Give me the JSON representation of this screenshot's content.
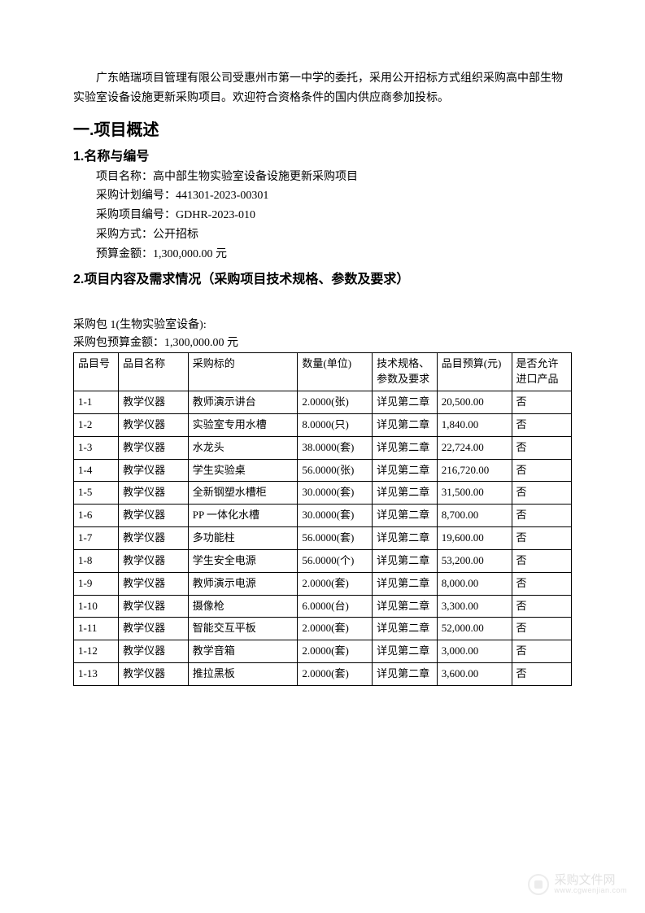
{
  "intro": "广东皓瑞项目管理有限公司受惠州市第一中学的委托，采用公开招标方式组织采购高中部生物实验室设备设施更新采购项目。欢迎符合资格条件的国内供应商参加投标。",
  "section1_title": "一.项目概述",
  "sub1_title": "1.名称与编号",
  "fields": {
    "project_name_label": "项目名称：",
    "project_name": "高中部生物实验室设备设施更新采购项目",
    "plan_no_label": "采购计划编号：",
    "plan_no": "441301-2023-00301",
    "proj_no_label": "采购项目编号：",
    "proj_no": "GDHR-2023-010",
    "method_label": "采购方式：",
    "method": "公开招标",
    "budget_label": "预算金额：",
    "budget": "1,300,000.00 元"
  },
  "sub2_title": "2.项目内容及需求情况（采购项目技术规格、参数及要求）",
  "package_title": "采购包 1(生物实验室设备):",
  "package_budget_label": "采购包预算金额：",
  "package_budget": "1,300,000.00 元",
  "table": {
    "columns": [
      "品目号",
      "品目名称",
      "采购标的",
      "数量(单位)",
      "技术规格、参数及要求",
      "品目预算(元)",
      "是否允许进口产品"
    ],
    "widths": [
      "9%",
      "14%",
      "22%",
      "15%",
      "13%",
      "15%",
      "12%"
    ],
    "border_color": "#000000",
    "font_size": 13,
    "rows": [
      [
        "1-1",
        "教学仪器",
        "教师演示讲台",
        "2.0000(张)",
        "详见第二章",
        "20,500.00",
        "否"
      ],
      [
        "1-2",
        "教学仪器",
        "实验室专用水槽",
        "8.0000(只)",
        "详见第二章",
        "1,840.00",
        "否"
      ],
      [
        "1-3",
        "教学仪器",
        "水龙头",
        "38.0000(套)",
        "详见第二章",
        "22,724.00",
        "否"
      ],
      [
        "1-4",
        "教学仪器",
        "学生实验桌",
        "56.0000(张)",
        "详见第二章",
        "216,720.00",
        "否"
      ],
      [
        "1-5",
        "教学仪器",
        "全新钢塑水槽柜",
        "30.0000(套)",
        "详见第二章",
        "31,500.00",
        "否"
      ],
      [
        "1-6",
        "教学仪器",
        "PP 一体化水槽",
        "30.0000(套)",
        "详见第二章",
        "8,700.00",
        "否"
      ],
      [
        "1-7",
        "教学仪器",
        "多功能柱",
        "56.0000(套)",
        "详见第二章",
        "19,600.00",
        "否"
      ],
      [
        "1-8",
        "教学仪器",
        "学生安全电源",
        "56.0000(个)",
        "详见第二章",
        "53,200.00",
        "否"
      ],
      [
        "1-9",
        "教学仪器",
        "教师演示电源",
        "2.0000(套)",
        "详见第二章",
        "8,000.00",
        "否"
      ],
      [
        "1-10",
        "教学仪器",
        "摄像枪",
        "6.0000(台)",
        "详见第二章",
        "3,300.00",
        "否"
      ],
      [
        "1-11",
        "教学仪器",
        "智能交互平板",
        "2.0000(套)",
        "详见第二章",
        "52,000.00",
        "否"
      ],
      [
        "1-12",
        "教学仪器",
        "教学音箱",
        "2.0000(套)",
        "详见第二章",
        "3,000.00",
        "否"
      ],
      [
        "1-13",
        "教学仪器",
        "推拉黑板",
        "2.0000(套)",
        "详见第二章",
        "3,600.00",
        "否"
      ]
    ]
  },
  "watermark": {
    "cn": "采购文件网",
    "en": "www.cgwenjian.com",
    "color": "#888888",
    "opacity": 0.22
  },
  "colors": {
    "background": "#ffffff",
    "text": "#000000",
    "border": "#000000"
  }
}
